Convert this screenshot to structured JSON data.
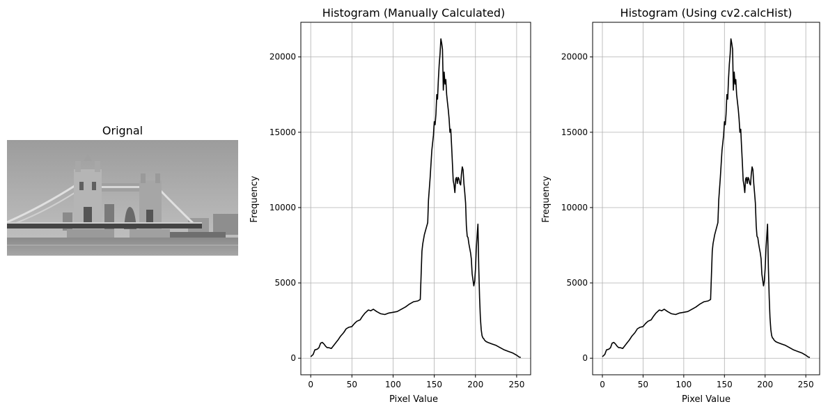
{
  "image_panel": {
    "title": "Orignal"
  },
  "chart_data": [
    {
      "type": "line",
      "title": "Histogram  (Manually Calculated)",
      "xlabel": "Pixel Value",
      "ylabel": "Frequency",
      "xlim": [
        -12,
        267
      ],
      "ylim": [
        -1100,
        22300
      ],
      "xticks": [
        0,
        50,
        100,
        150,
        200,
        250
      ],
      "yticks": [
        0,
        5000,
        10000,
        15000,
        20000
      ],
      "grid": true,
      "line_color": "#000000",
      "series": [
        {
          "x": [
            0,
            3,
            5,
            8,
            10,
            12,
            14,
            16,
            18,
            20,
            22,
            25,
            28,
            30,
            33,
            36,
            40,
            43,
            46,
            50,
            53,
            56,
            60,
            63,
            66,
            70,
            73,
            76,
            80,
            85,
            90,
            95,
            100,
            105,
            110,
            115,
            120,
            125,
            130,
            133,
            134,
            135,
            136,
            138,
            140,
            142,
            143,
            145,
            147,
            149,
            150,
            151,
            152,
            153,
            154,
            155,
            156,
            157,
            158,
            159,
            160,
            161,
            162,
            163,
            164,
            165,
            166,
            167,
            168,
            169,
            170,
            171,
            172,
            173,
            174,
            175,
            176,
            177,
            178,
            179,
            180,
            181,
            182,
            183,
            184,
            185,
            186,
            187,
            188,
            189,
            190,
            191,
            192,
            193,
            194,
            195,
            196,
            197,
            198,
            199,
            200,
            201,
            202,
            203,
            204,
            205,
            206,
            207,
            208,
            209,
            210,
            211,
            212,
            213,
            215,
            220,
            225,
            230,
            235,
            240,
            245,
            250,
            253,
            255
          ],
          "y": [
            100,
            250,
            550,
            600,
            700,
            1000,
            1050,
            950,
            800,
            700,
            700,
            650,
            850,
            1000,
            1200,
            1450,
            1700,
            1950,
            2050,
            2100,
            2300,
            2450,
            2550,
            2800,
            3000,
            3200,
            3150,
            3250,
            3100,
            2950,
            2900,
            3000,
            3050,
            3100,
            3250,
            3400,
            3600,
            3750,
            3800,
            3900,
            5500,
            7100,
            7600,
            8200,
            8600,
            9000,
            10500,
            12000,
            13800,
            14800,
            15700,
            15500,
            16200,
            17500,
            17200,
            18500,
            19500,
            20200,
            21200,
            20900,
            20500,
            17800,
            19000,
            18200,
            18500,
            17500,
            17000,
            16500,
            15900,
            15000,
            15200,
            14100,
            13000,
            11800,
            11500,
            11000,
            11900,
            12000,
            11600,
            12000,
            11900,
            11600,
            11500,
            12200,
            12700,
            12500,
            11600,
            11000,
            10300,
            8800,
            8100,
            8000,
            7600,
            7300,
            7000,
            6600,
            5600,
            5200,
            4800,
            5100,
            5900,
            7200,
            8100,
            8900,
            6000,
            4000,
            2700,
            1900,
            1500,
            1350,
            1300,
            1200,
            1150,
            1100,
            1050,
            950,
            850,
            700,
            550,
            450,
            350,
            200,
            80,
            50
          ]
        }
      ]
    },
    {
      "type": "line",
      "title": "Histogram  (Using cv2.calcHist)",
      "xlabel": "Pixel Value",
      "ylabel": "Frequency",
      "xlim": [
        -12,
        267
      ],
      "ylim": [
        -1100,
        22300
      ],
      "xticks": [
        0,
        50,
        100,
        150,
        200,
        250
      ],
      "yticks": [
        0,
        5000,
        10000,
        15000,
        20000
      ],
      "grid": true,
      "line_color": "#000000",
      "series": [
        {
          "x": [
            0,
            3,
            5,
            8,
            10,
            12,
            14,
            16,
            18,
            20,
            22,
            25,
            28,
            30,
            33,
            36,
            40,
            43,
            46,
            50,
            53,
            56,
            60,
            63,
            66,
            70,
            73,
            76,
            80,
            85,
            90,
            95,
            100,
            105,
            110,
            115,
            120,
            125,
            130,
            133,
            134,
            135,
            136,
            138,
            140,
            142,
            143,
            145,
            147,
            149,
            150,
            151,
            152,
            153,
            154,
            155,
            156,
            157,
            158,
            159,
            160,
            161,
            162,
            163,
            164,
            165,
            166,
            167,
            168,
            169,
            170,
            171,
            172,
            173,
            174,
            175,
            176,
            177,
            178,
            179,
            180,
            181,
            182,
            183,
            184,
            185,
            186,
            187,
            188,
            189,
            190,
            191,
            192,
            193,
            194,
            195,
            196,
            197,
            198,
            199,
            200,
            201,
            202,
            203,
            204,
            205,
            206,
            207,
            208,
            209,
            210,
            211,
            212,
            213,
            215,
            220,
            225,
            230,
            235,
            240,
            245,
            250,
            253,
            255
          ],
          "y": [
            100,
            250,
            550,
            600,
            700,
            1000,
            1050,
            950,
            800,
            700,
            700,
            650,
            850,
            1000,
            1200,
            1450,
            1700,
            1950,
            2050,
            2100,
            2300,
            2450,
            2550,
            2800,
            3000,
            3200,
            3150,
            3250,
            3100,
            2950,
            2900,
            3000,
            3050,
            3100,
            3250,
            3400,
            3600,
            3750,
            3800,
            3900,
            5500,
            7100,
            7600,
            8200,
            8600,
            9000,
            10500,
            12000,
            13800,
            14800,
            15700,
            15500,
            16200,
            17500,
            17200,
            18500,
            19500,
            20200,
            21200,
            20900,
            20500,
            17800,
            19000,
            18200,
            18500,
            17500,
            17000,
            16500,
            15900,
            15000,
            15200,
            14100,
            13000,
            11800,
            11500,
            11000,
            11900,
            12000,
            11600,
            12000,
            11900,
            11600,
            11500,
            12200,
            12700,
            12500,
            11600,
            11000,
            10300,
            8800,
            8100,
            8000,
            7600,
            7300,
            7000,
            6600,
            5600,
            5200,
            4800,
            5100,
            5900,
            7200,
            8100,
            8900,
            6000,
            4000,
            2700,
            1900,
            1500,
            1350,
            1300,
            1200,
            1150,
            1100,
            1050,
            950,
            850,
            700,
            550,
            450,
            350,
            200,
            80,
            50
          ]
        }
      ]
    }
  ]
}
